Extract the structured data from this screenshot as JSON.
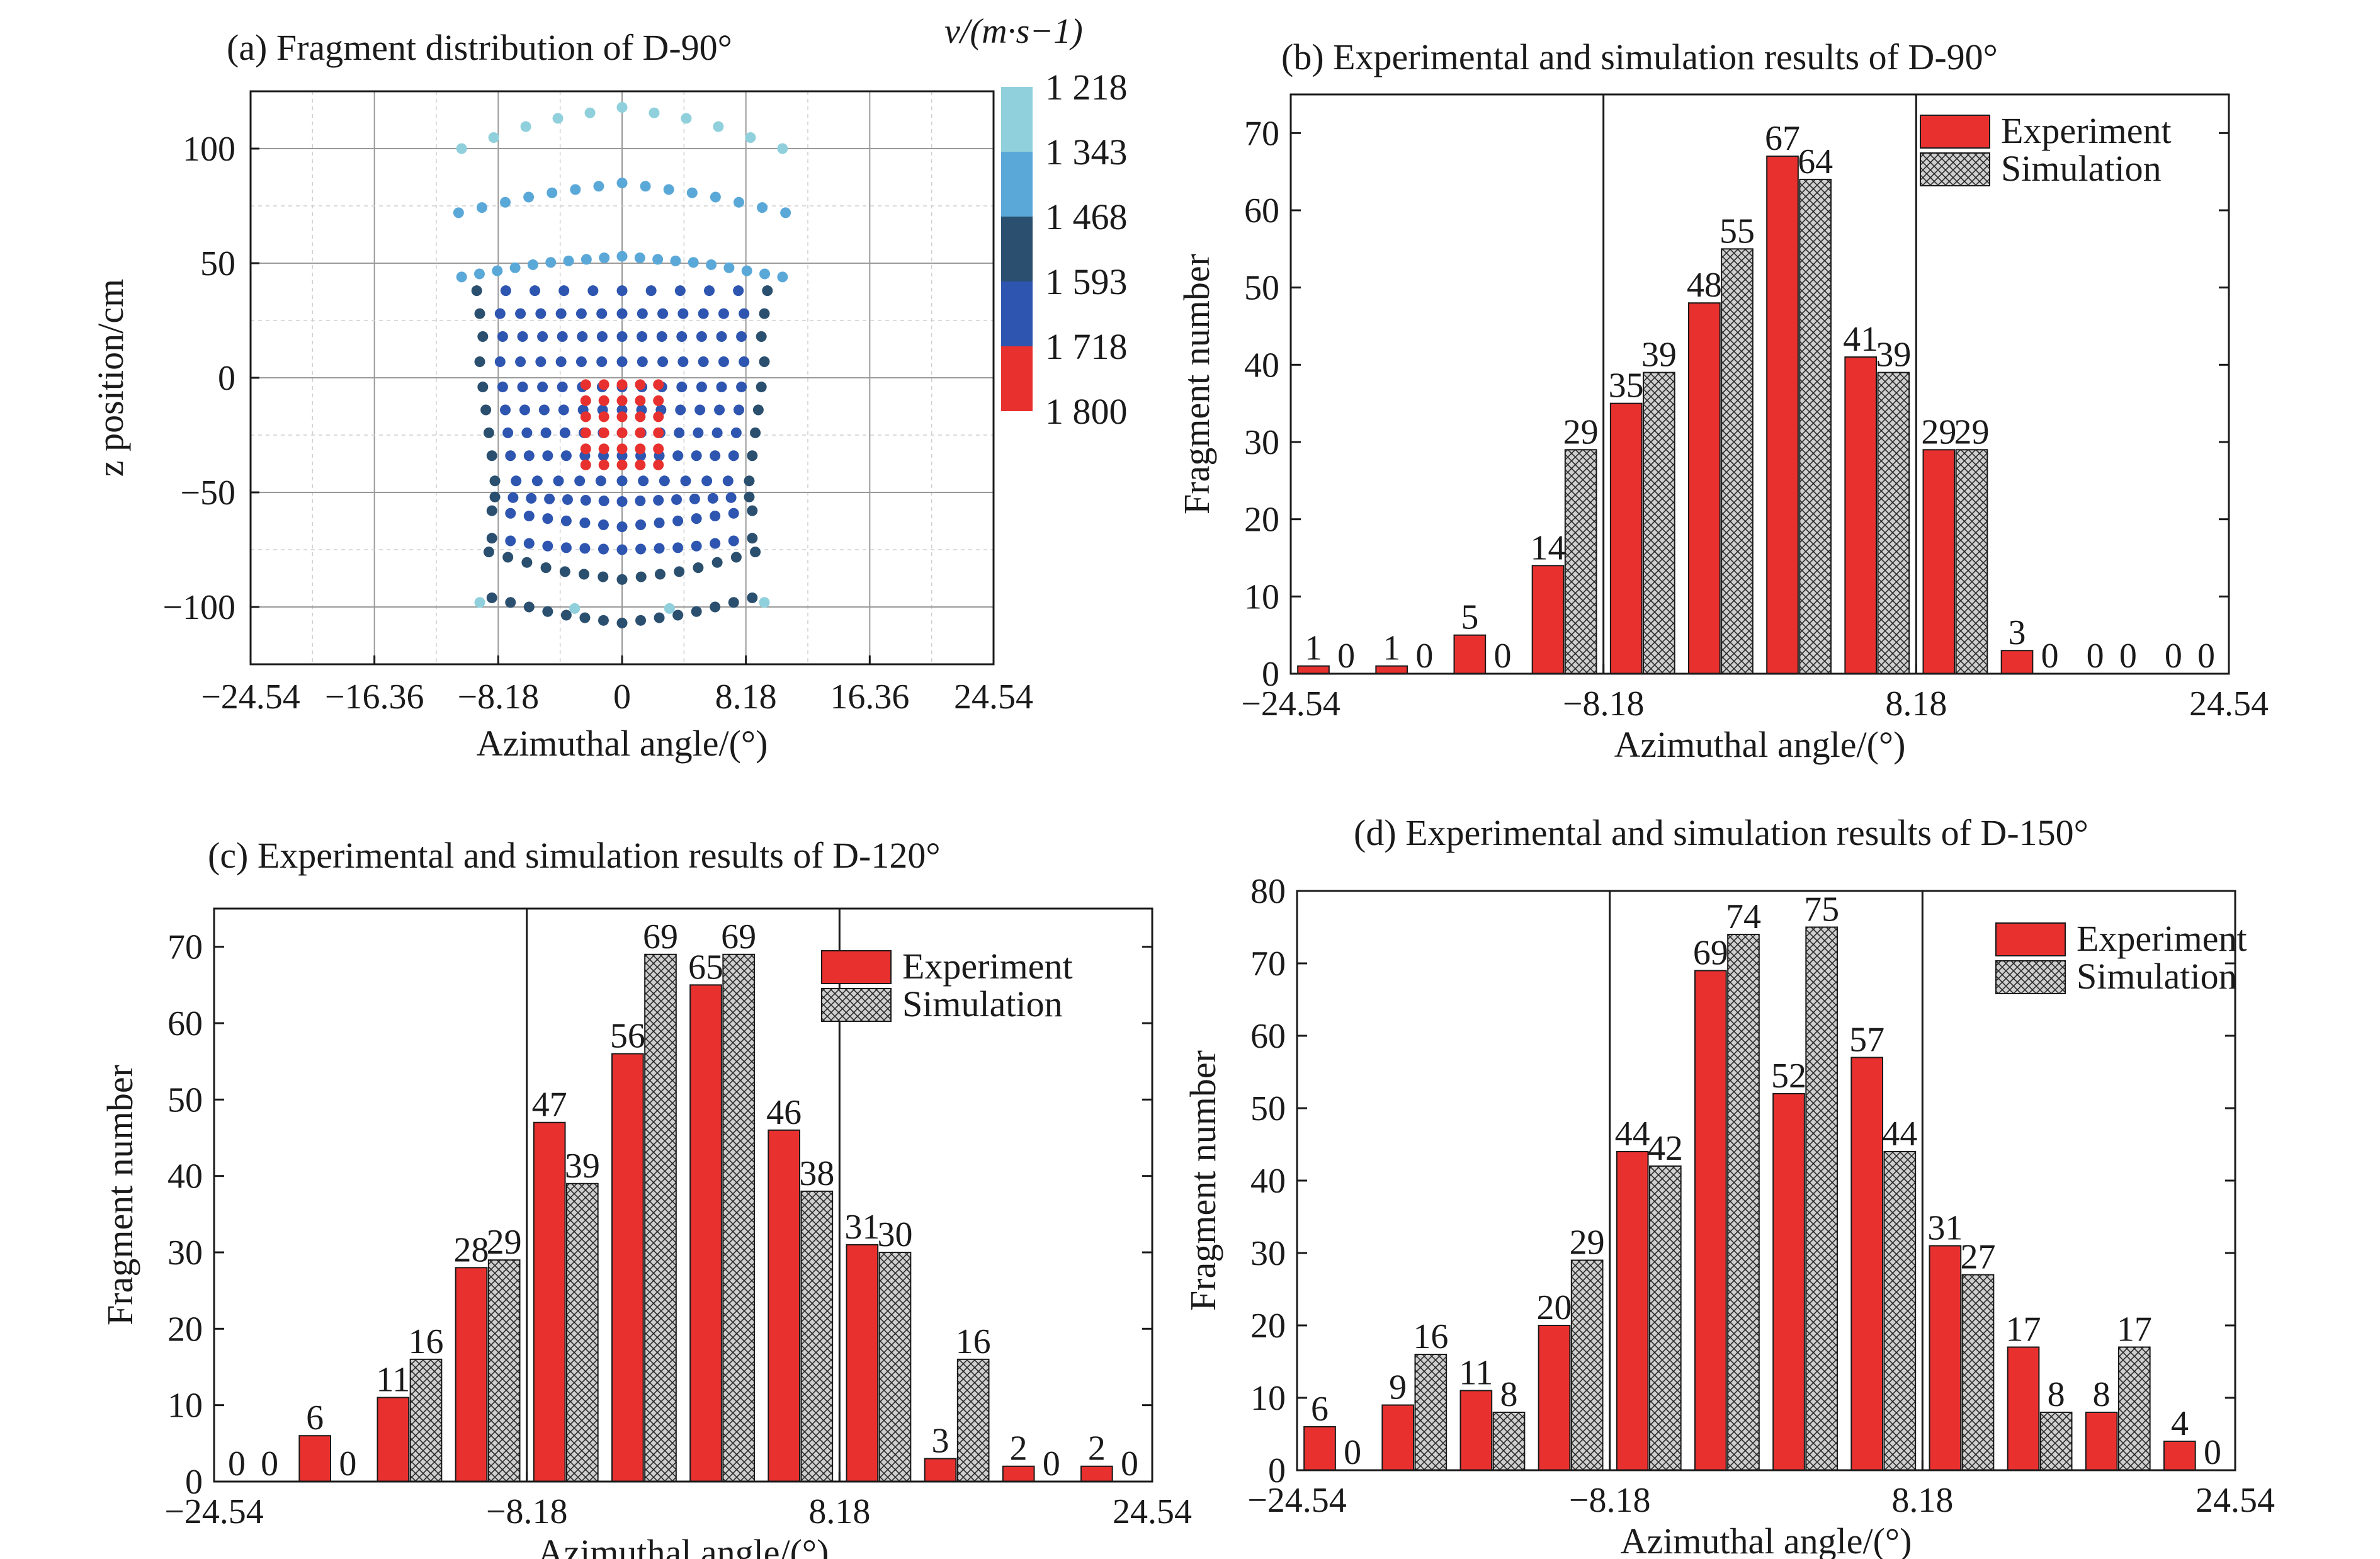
{
  "chart_data": [
    {
      "type": "scatter",
      "panel": "a",
      "title": "(a) Fragment distribution of D-90°",
      "xlabel": "Azimuthal angle/(°)",
      "ylabel": "z position/cm",
      "xlim": [
        -24.54,
        24.54
      ],
      "ylim": [
        -125,
        125
      ],
      "xticks": [
        "−24.54",
        "−16.36",
        "−8.18",
        "0",
        "8.18",
        "16.36",
        "24.54"
      ],
      "yticks": [
        "100",
        "50",
        "0",
        "−50",
        "−100"
      ],
      "grid": true,
      "colorbar": {
        "title": "v/(m·s−1)",
        "ticks": [
          "1 218",
          "1 343",
          "1 468",
          "1 593",
          "1 718",
          "1 800"
        ],
        "colors": [
          "#8fd0dc",
          "#5aa8d8",
          "#2b4f6e",
          "#2e55b0",
          "#e8312f"
        ]
      },
      "rows": [
        {
          "z": [
            100,
            112,
            118,
            112,
            100
          ],
          "x_halfwidth": 10.6,
          "count": 11,
          "level": 0
        },
        {
          "z": [
            72,
            80,
            85,
            80,
            72
          ],
          "x_halfwidth": 10.8,
          "count": 15,
          "level": 1
        },
        {
          "z": [
            44,
            50,
            53,
            50,
            44
          ],
          "x_halfwidth": 10.6,
          "count": 19,
          "level": 1
        },
        {
          "z": [
            38,
            38,
            38,
            38,
            38
          ],
          "x_halfwidth": 9.6,
          "count": 11,
          "level": 3
        },
        {
          "z": [
            28,
            28,
            28,
            28,
            28
          ],
          "x_halfwidth": 9.4,
          "count": 15,
          "level": 3
        },
        {
          "z": [
            18,
            18,
            18,
            18,
            18
          ],
          "x_halfwidth": 9.2,
          "count": 15,
          "level": 3
        },
        {
          "z": [
            7,
            7,
            7,
            7,
            7
          ],
          "x_halfwidth": 9.4,
          "count": 15,
          "level": 3
        },
        {
          "z": [
            -4,
            -4,
            -4,
            -4,
            -4
          ],
          "x_halfwidth": 9.2,
          "count": 15,
          "level": 3
        },
        {
          "z": [
            -14,
            -14,
            -14,
            -14,
            -14
          ],
          "x_halfwidth": 9.0,
          "count": 15,
          "level": 3
        },
        {
          "z": [
            -24,
            -24,
            -24,
            -24,
            -24
          ],
          "x_halfwidth": 8.8,
          "count": 15,
          "level": 3
        },
        {
          "z": [
            -34,
            -34,
            -34,
            -34,
            -34
          ],
          "x_halfwidth": 8.6,
          "count": 15,
          "level": 3
        },
        {
          "z": [
            -45,
            -45,
            -45,
            -45,
            -45
          ],
          "x_halfwidth": 8.4,
          "count": 13,
          "level": 3
        },
        {
          "z": [
            -52,
            -53,
            -54,
            -53,
            -52
          ],
          "x_halfwidth": 8.4,
          "count": 15,
          "level": 3
        },
        {
          "z": [
            -58,
            -62,
            -65,
            -62,
            -58
          ],
          "x_halfwidth": 8.6,
          "count": 15,
          "level": 3
        },
        {
          "z": [
            -70,
            -74,
            -75,
            -74,
            -70
          ],
          "x_halfwidth": 8.6,
          "count": 15,
          "level": 3
        },
        {
          "z": [
            -76,
            -84,
            -88,
            -84,
            -76
          ],
          "x_halfwidth": 8.8,
          "count": 15,
          "level": 2
        },
        {
          "z": [
            -96,
            -103,
            -107,
            -103,
            -96
          ],
          "x_halfwidth": 8.6,
          "count": 15,
          "level": 2
        },
        {
          "z": [
            -98,
            -100,
            -102,
            -100,
            -98
          ],
          "x_halfwidth": 9.4,
          "count": 4,
          "level": 0
        }
      ],
      "core": {
        "z": [
          -3,
          -10,
          -17,
          -24,
          -31,
          -38
        ],
        "x": [
          -2.4,
          -1.2,
          0,
          1.2,
          2.4
        ],
        "level": 4
      }
    },
    {
      "type": "bar",
      "panel": "b",
      "title": "(b) Experimental and simulation results of D-90°",
      "xlabel": "Azimuthal angle/(°)",
      "ylabel": "Fragment number",
      "ylim": [
        0,
        75
      ],
      "yticks": [
        0,
        10,
        20,
        30,
        40,
        50,
        60,
        70
      ],
      "xticks": [
        "−24.54",
        "−8.18",
        "8.18",
        "24.54"
      ],
      "vlines": [
        "−8.18",
        "8.18"
      ],
      "legend": "top-right",
      "series": [
        {
          "name": "Experiment",
          "values": [
            1,
            1,
            5,
            14,
            35,
            48,
            67,
            41,
            29,
            3,
            0,
            0
          ]
        },
        {
          "name": "Simulation",
          "values": [
            0,
            0,
            0,
            29,
            39,
            55,
            64,
            39,
            29,
            0,
            0,
            0
          ]
        }
      ]
    },
    {
      "type": "bar",
      "panel": "c",
      "title": "(c) Experimental and simulation results of D-120°",
      "xlabel": "Azimuthal angle/(°)",
      "ylabel": "Fragment number",
      "ylim": [
        0,
        75
      ],
      "yticks": [
        0,
        10,
        20,
        30,
        40,
        50,
        60,
        70
      ],
      "xticks": [
        "−24.54",
        "−8.18",
        "8.18",
        "24.54"
      ],
      "vlines": [
        "−8.18",
        "8.18"
      ],
      "legend": "top-right",
      "series": [
        {
          "name": "Experiment",
          "values": [
            0,
            6,
            11,
            28,
            47,
            56,
            65,
            46,
            31,
            3,
            2,
            2
          ]
        },
        {
          "name": "Simulation",
          "values": [
            0,
            0,
            16,
            29,
            39,
            69,
            69,
            38,
            30,
            16,
            0,
            0
          ]
        }
      ]
    },
    {
      "type": "bar",
      "panel": "d",
      "title": "(d) Experimental and simulation results of D-150°",
      "xlabel": "Azimuthal angle/(°)",
      "ylabel": "Fragment number",
      "ylim": [
        0,
        80
      ],
      "yticks": [
        0,
        10,
        20,
        30,
        40,
        50,
        60,
        70,
        80
      ],
      "xticks": [
        "−24.54",
        "−8.18",
        "8.18",
        "24.54"
      ],
      "vlines": [
        "−8.18",
        "8.18"
      ],
      "legend": "top-right",
      "series": [
        {
          "name": "Experiment",
          "values": [
            6,
            9,
            11,
            20,
            44,
            69,
            52,
            57,
            31,
            17,
            8,
            4
          ]
        },
        {
          "name": "Simulation",
          "values": [
            0,
            16,
            8,
            29,
            42,
            74,
            75,
            44,
            27,
            8,
            17,
            0
          ]
        }
      ]
    }
  ],
  "colors": {
    "experiment": "#e8312f",
    "simulation_fill": "#c9c9c9",
    "simulation_hatch": "#2a2a2a",
    "axis": "#1a1a1a",
    "grid": "#bdbdbd"
  }
}
